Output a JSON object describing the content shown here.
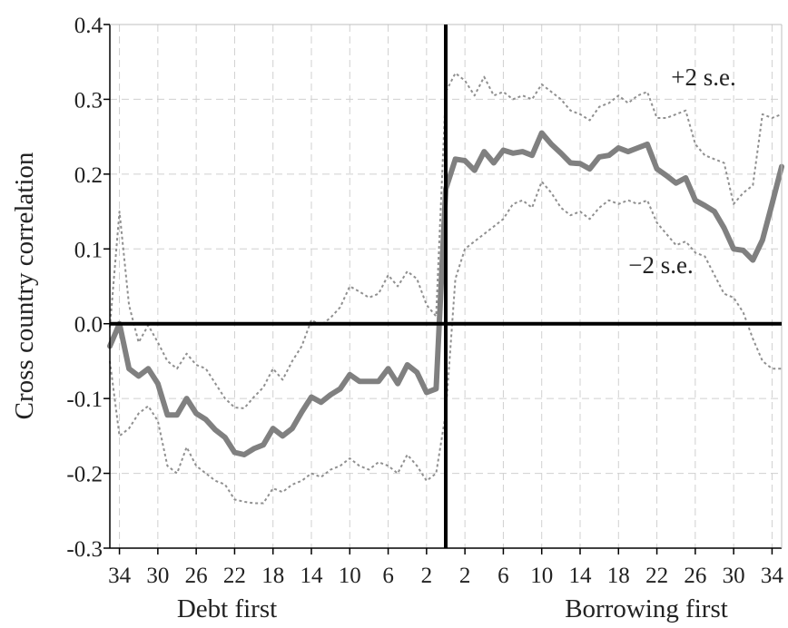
{
  "chart_data": {
    "type": "line",
    "title": "",
    "ylabel": "Cross country correlation",
    "xlim": [
      -35,
      35
    ],
    "ylim": [
      -0.3,
      0.4
    ],
    "grid": true,
    "y_ticks": [
      -0.3,
      -0.2,
      -0.1,
      0.0,
      0.1,
      0.2,
      0.3,
      0.4
    ],
    "y_tick_labels": [
      "-0.3",
      "-0.2",
      "-0.1",
      "0.0",
      "0.1",
      "0.2",
      "0.3",
      "0.4"
    ],
    "x_ticks": [
      -34,
      -30,
      -26,
      -22,
      -18,
      -14,
      -10,
      -6,
      -2,
      2,
      6,
      10,
      14,
      18,
      22,
      26,
      30,
      34
    ],
    "x_tick_labels": [
      "34",
      "30",
      "26",
      "22",
      "18",
      "14",
      "10",
      "6",
      "2",
      "2",
      "6",
      "10",
      "14",
      "18",
      "22",
      "26",
      "30",
      "34"
    ],
    "group_labels": {
      "left": "Debt first",
      "right": "Borrowing first"
    },
    "annotations": {
      "upper": "+2 s.e.",
      "lower": "−2 s.e."
    },
    "x": [
      -35,
      -34,
      -33,
      -32,
      -31,
      -30,
      -29,
      -28,
      -27,
      -26,
      -25,
      -24,
      -23,
      -22,
      -21,
      -20,
      -19,
      -18,
      -17,
      -16,
      -15,
      -14,
      -13,
      -12,
      -11,
      -10,
      -9,
      -8,
      -7,
      -6,
      -5,
      -4,
      -3,
      -2,
      -1,
      0,
      1,
      2,
      3,
      4,
      5,
      6,
      7,
      8,
      9,
      10,
      11,
      12,
      13,
      14,
      15,
      16,
      17,
      18,
      19,
      20,
      21,
      22,
      23,
      24,
      25,
      26,
      27,
      28,
      29,
      30,
      31,
      32,
      33,
      34,
      35
    ],
    "series": [
      {
        "name": "",
        "style": "solid-thick",
        "color": "#808080",
        "values": [
          -0.03,
          0.0,
          -0.06,
          -0.07,
          -0.06,
          -0.08,
          -0.122,
          -0.122,
          -0.1,
          -0.12,
          -0.128,
          -0.142,
          -0.152,
          -0.172,
          -0.175,
          -0.167,
          -0.162,
          -0.14,
          -0.15,
          -0.14,
          -0.118,
          -0.098,
          -0.105,
          -0.095,
          -0.087,
          -0.068,
          -0.077,
          -0.077,
          -0.077,
          -0.06,
          -0.08,
          -0.055,
          -0.065,
          -0.092,
          -0.087,
          0.18,
          0.22,
          0.218,
          0.205,
          0.23,
          0.215,
          0.232,
          0.228,
          0.23,
          0.225,
          0.255,
          0.24,
          0.228,
          0.215,
          0.214,
          0.207,
          0.223,
          0.225,
          0.235,
          0.23,
          0.235,
          0.24,
          0.207,
          0.198,
          0.188,
          0.195,
          0.165,
          0.158,
          0.15,
          0.128,
          0.1,
          0.098,
          0.085,
          0.112,
          0.16,
          0.21
        ]
      },
      {
        "name": "+2 s.e.",
        "style": "dotted",
        "color": "#909090",
        "values": [
          -0.005,
          0.15,
          0.025,
          -0.025,
          -0.002,
          -0.025,
          -0.05,
          -0.06,
          -0.04,
          -0.055,
          -0.06,
          -0.08,
          -0.1,
          -0.112,
          -0.113,
          -0.098,
          -0.085,
          -0.06,
          -0.075,
          -0.05,
          -0.03,
          0.005,
          -0.002,
          0.008,
          0.022,
          0.05,
          0.043,
          0.035,
          0.04,
          0.065,
          0.05,
          0.07,
          0.06,
          0.025,
          0.01,
          0.31,
          0.335,
          0.325,
          0.305,
          0.33,
          0.305,
          0.31,
          0.3,
          0.305,
          0.3,
          0.32,
          0.31,
          0.3,
          0.285,
          0.28,
          0.272,
          0.29,
          0.295,
          0.305,
          0.295,
          0.305,
          0.31,
          0.275,
          0.275,
          0.28,
          0.285,
          0.24,
          0.225,
          0.22,
          0.215,
          0.16,
          0.175,
          0.185,
          0.28,
          0.275,
          0.28
        ]
      },
      {
        "name": "−2 s.e.",
        "style": "dotted",
        "color": "#909090",
        "values": [
          -0.05,
          -0.15,
          -0.14,
          -0.12,
          -0.11,
          -0.13,
          -0.19,
          -0.2,
          -0.165,
          -0.19,
          -0.2,
          -0.21,
          -0.215,
          -0.235,
          -0.238,
          -0.24,
          -0.24,
          -0.22,
          -0.225,
          -0.215,
          -0.21,
          -0.2,
          -0.205,
          -0.195,
          -0.19,
          -0.18,
          -0.19,
          -0.195,
          -0.185,
          -0.19,
          -0.2,
          -0.175,
          -0.19,
          -0.21,
          -0.2,
          -0.12,
          0.06,
          0.1,
          0.11,
          0.12,
          0.13,
          0.14,
          0.16,
          0.165,
          0.155,
          0.19,
          0.175,
          0.155,
          0.145,
          0.15,
          0.14,
          0.155,
          0.165,
          0.16,
          0.165,
          0.16,
          0.165,
          0.135,
          0.12,
          0.105,
          0.11,
          0.095,
          0.09,
          0.065,
          0.04,
          0.035,
          0.015,
          -0.02,
          -0.05,
          -0.06,
          -0.06
        ]
      }
    ]
  }
}
